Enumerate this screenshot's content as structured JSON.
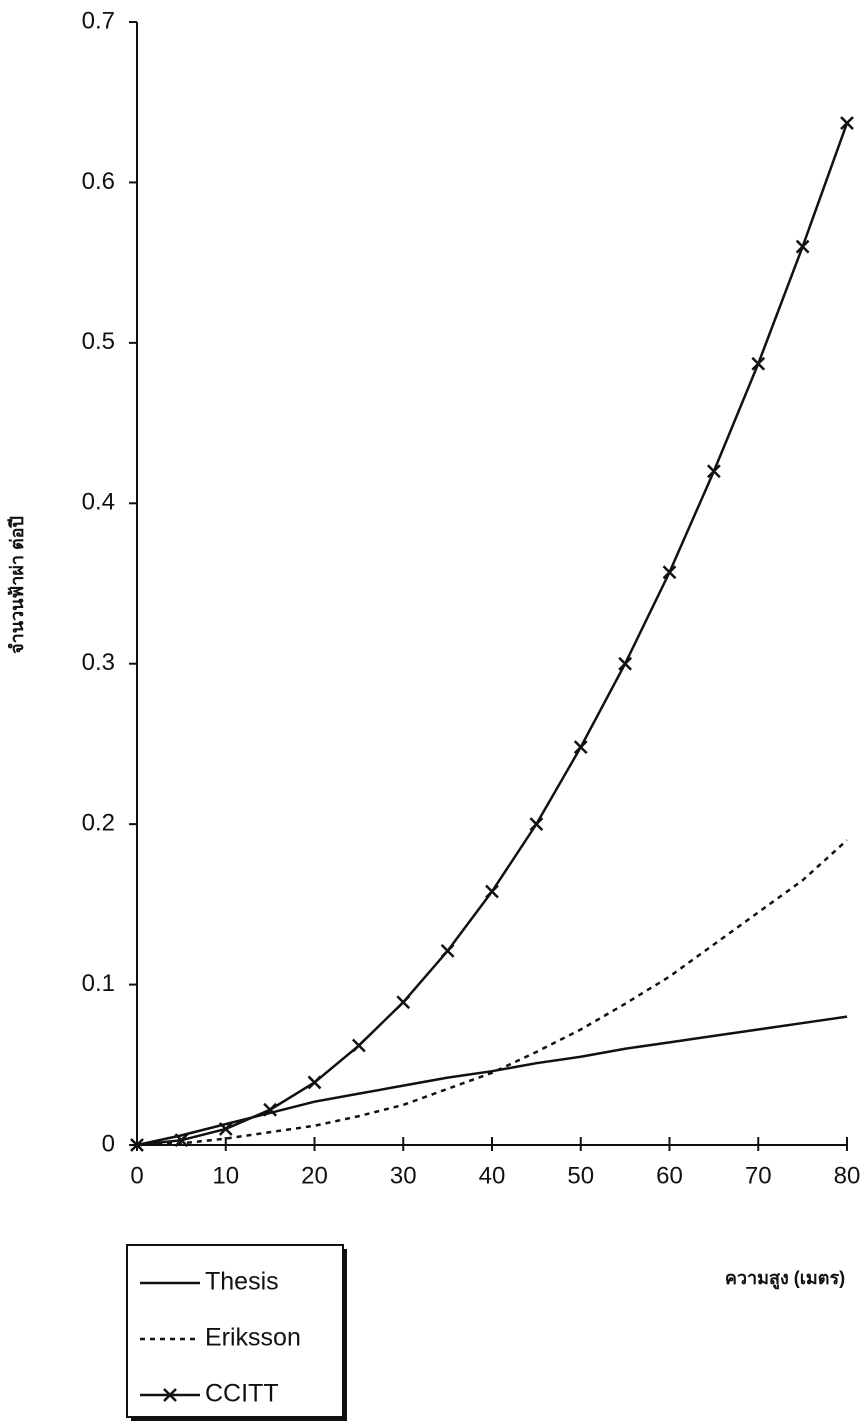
{
  "chart_data": {
    "type": "line",
    "x_label": "ความสูง (เมตร)",
    "y_label": "จำนวนฟ้าผ่า ต่อปี",
    "x": [
      0,
      5,
      10,
      15,
      20,
      25,
      30,
      35,
      40,
      45,
      50,
      55,
      60,
      65,
      70,
      75,
      80
    ],
    "series": [
      {
        "name": "Thesis",
        "color": "#111111",
        "dash": "solid",
        "marker": "none",
        "values": [
          0,
          0.006,
          0.013,
          0.02,
          0.027,
          0.032,
          0.037,
          0.042,
          0.046,
          0.051,
          0.055,
          0.06,
          0.064,
          0.068,
          0.072,
          0.076,
          0.08
        ]
      },
      {
        "name": "Eriksson",
        "color": "#111111",
        "dash": "dotted",
        "marker": "none",
        "values": [
          0,
          0.001,
          0.004,
          0.008,
          0.012,
          0.018,
          0.025,
          0.035,
          0.045,
          0.058,
          0.072,
          0.088,
          0.105,
          0.125,
          0.145,
          0.165,
          0.19
        ]
      },
      {
        "name": "CCITT",
        "color": "#111111",
        "dash": "solid",
        "marker": "x",
        "values": [
          0,
          0.003,
          0.01,
          0.022,
          0.039,
          0.062,
          0.089,
          0.121,
          0.158,
          0.2,
          0.248,
          0.3,
          0.357,
          0.42,
          0.487,
          0.56,
          0.637
        ]
      }
    ],
    "xlim": [
      0,
      80
    ],
    "xticks": [
      0,
      10,
      20,
      30,
      40,
      50,
      60,
      70,
      80
    ],
    "ylim": [
      0,
      0.7
    ],
    "yticks": [
      0,
      0.1,
      0.2,
      0.3,
      0.4,
      0.5,
      0.6,
      0.7
    ],
    "grid": false,
    "legend": "below-left"
  }
}
